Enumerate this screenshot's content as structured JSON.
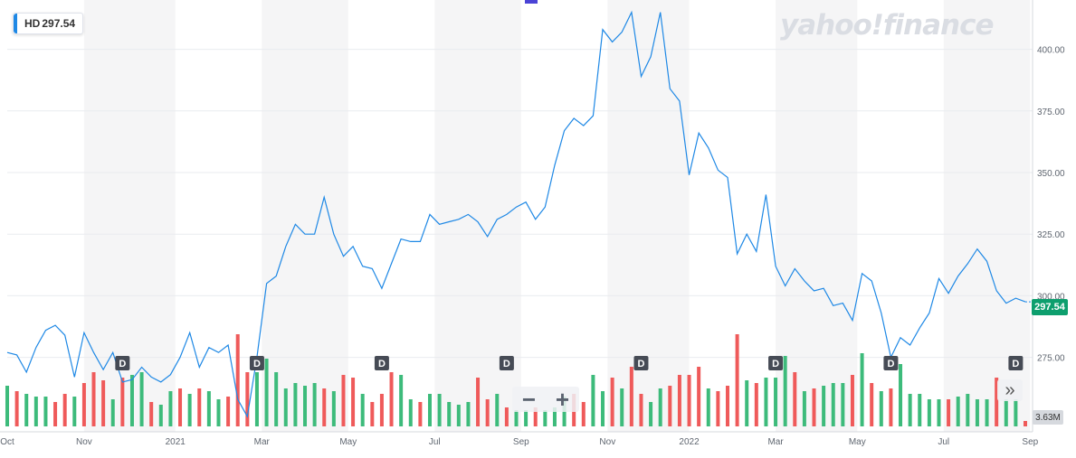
{
  "ticker": {
    "symbol": "HD",
    "price": "297.54"
  },
  "logo": "yahoo!finance",
  "price_tag": "297.54",
  "volume_tag": "3.63M",
  "zoom": {
    "minus": "−",
    "plus": "+"
  },
  "more_button": "»",
  "dividend_label": "D",
  "colors": {
    "line": "#1e88e5",
    "up": "#3dbb7b",
    "down": "#ef5a5a",
    "band": "#f5f5f6",
    "grid": "#e9ebef"
  },
  "chart_data": {
    "type": "line",
    "title": "",
    "series": [
      {
        "name": "HD",
        "values": [
          277,
          276,
          269,
          279,
          286,
          288,
          284,
          267,
          285,
          277,
          270,
          277,
          265,
          266,
          271,
          267,
          265,
          268,
          275,
          285,
          271,
          279,
          277,
          280,
          258,
          251,
          275,
          305,
          308,
          320,
          329,
          325,
          325,
          340,
          325,
          316,
          320,
          312,
          311,
          303,
          313,
          323,
          322,
          322,
          333,
          329,
          330,
          331,
          333,
          330,
          324,
          331,
          333,
          336,
          338,
          331,
          336,
          353,
          367,
          372,
          369,
          373,
          408,
          403,
          407,
          415,
          389,
          397,
          415,
          384,
          379,
          349,
          366,
          360,
          351,
          348,
          317,
          325,
          318,
          341,
          312,
          304,
          311,
          306,
          302,
          303,
          296,
          297,
          290,
          309,
          306,
          293,
          275,
          283,
          280,
          287,
          293,
          307,
          301,
          308,
          313,
          319,
          314,
          302,
          297,
          299,
          297.54
        ]
      }
    ],
    "volume": {
      "values": [
        7.5,
        6.5,
        6,
        5.5,
        5.5,
        4.5,
        6,
        5.5,
        8,
        10,
        8.5,
        5,
        9,
        9.5,
        10,
        4.5,
        4,
        6.5,
        7,
        6,
        7,
        6.5,
        5,
        5.5,
        17,
        10,
        10,
        12.5,
        10,
        7,
        8,
        7.5,
        8,
        7,
        6.5,
        9.5,
        9,
        6,
        4.5,
        6,
        10,
        9.5,
        5,
        4.5,
        6,
        6,
        4.5,
        4,
        4.5,
        9,
        5,
        6,
        3.5,
        3,
        3,
        3.5,
        3,
        3.5,
        5.5,
        6,
        4.5,
        9.5,
        6.5,
        9,
        7,
        11,
        6,
        4.5,
        7,
        7.5,
        9.5,
        9.5,
        11,
        7,
        6.5,
        7.5,
        17,
        8.5,
        8,
        9,
        9,
        13,
        10,
        6.5,
        7,
        7.5,
        8,
        8,
        9.5,
        13.5,
        8,
        6.5,
        7,
        11.5,
        6,
        6,
        5,
        5,
        5,
        5.5,
        6,
        5,
        5,
        9,
        5,
        5,
        1
      ],
      "up": [
        1,
        0,
        1,
        1,
        1,
        0,
        0,
        1,
        0,
        0,
        0,
        1,
        0,
        1,
        1,
        0,
        1,
        1,
        0,
        1,
        0,
        1,
        1,
        0,
        0,
        0,
        1,
        1,
        1,
        1,
        1,
        1,
        1,
        0,
        1,
        0,
        0,
        1,
        0,
        0,
        0,
        1,
        1,
        0,
        1,
        1,
        1,
        1,
        1,
        0,
        0,
        1,
        0,
        1,
        1,
        0,
        1,
        1,
        1,
        0,
        0,
        1,
        1,
        0,
        1,
        0,
        0,
        1,
        1,
        0,
        0,
        0,
        0,
        1,
        0,
        0,
        0,
        1,
        0,
        1,
        1,
        1,
        0,
        1,
        0,
        1,
        1,
        1,
        0,
        1,
        0,
        1,
        0,
        1,
        1,
        1,
        1,
        1,
        0,
        1,
        1,
        1,
        1,
        0,
        1,
        1,
        0
      ]
    },
    "x_ticks": [
      {
        "label": "Oct",
        "pos": 0
      },
      {
        "label": "Nov",
        "pos": 8
      },
      {
        "label": "2021",
        "pos": 17.5
      },
      {
        "label": "Mar",
        "pos": 26.5
      },
      {
        "label": "May",
        "pos": 35.5
      },
      {
        "label": "Jul",
        "pos": 44.5
      },
      {
        "label": "Sep",
        "pos": 53.5
      },
      {
        "label": "Nov",
        "pos": 62.5
      },
      {
        "label": "2022",
        "pos": 71
      },
      {
        "label": "Mar",
        "pos": 80
      },
      {
        "label": "May",
        "pos": 88.5
      },
      {
        "label": "Jul",
        "pos": 97.5
      },
      {
        "label": "Sep",
        "pos": 106.5
      }
    ],
    "y_ticks": [
      275,
      300,
      325,
      350,
      375,
      400
    ],
    "ylim": [
      247,
      420
    ],
    "dividends": [
      12,
      26,
      39,
      52,
      66,
      80,
      92,
      105
    ],
    "grid": true,
    "legend": "top-left"
  }
}
